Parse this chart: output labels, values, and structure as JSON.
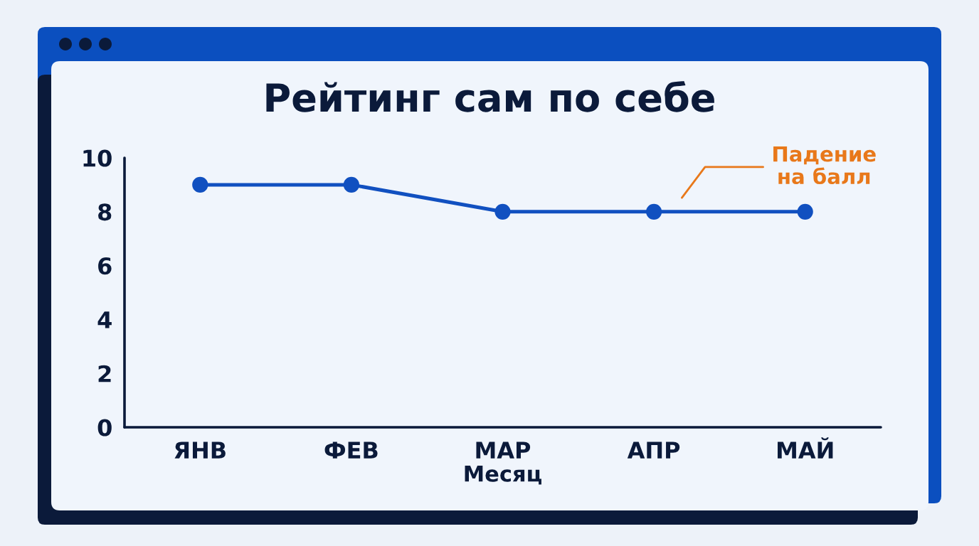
{
  "chart_data": {
    "type": "line",
    "title": "Рейтинг сам по себе",
    "xlabel": "Месяц",
    "categories": [
      "ЯНВ",
      "ФЕВ",
      "МАР",
      "АПР",
      "МАЙ"
    ],
    "series": [
      {
        "color": "#1150c0",
        "values": [
          9,
          9,
          8,
          8,
          8
        ]
      }
    ],
    "ylim": [
      0,
      10
    ],
    "yticks": [
      0,
      2,
      4,
      6,
      8,
      10
    ],
    "marker": "circle",
    "line_style": "solid",
    "grid": false,
    "annotations": [
      "Падение\nна балл"
    ]
  }
}
